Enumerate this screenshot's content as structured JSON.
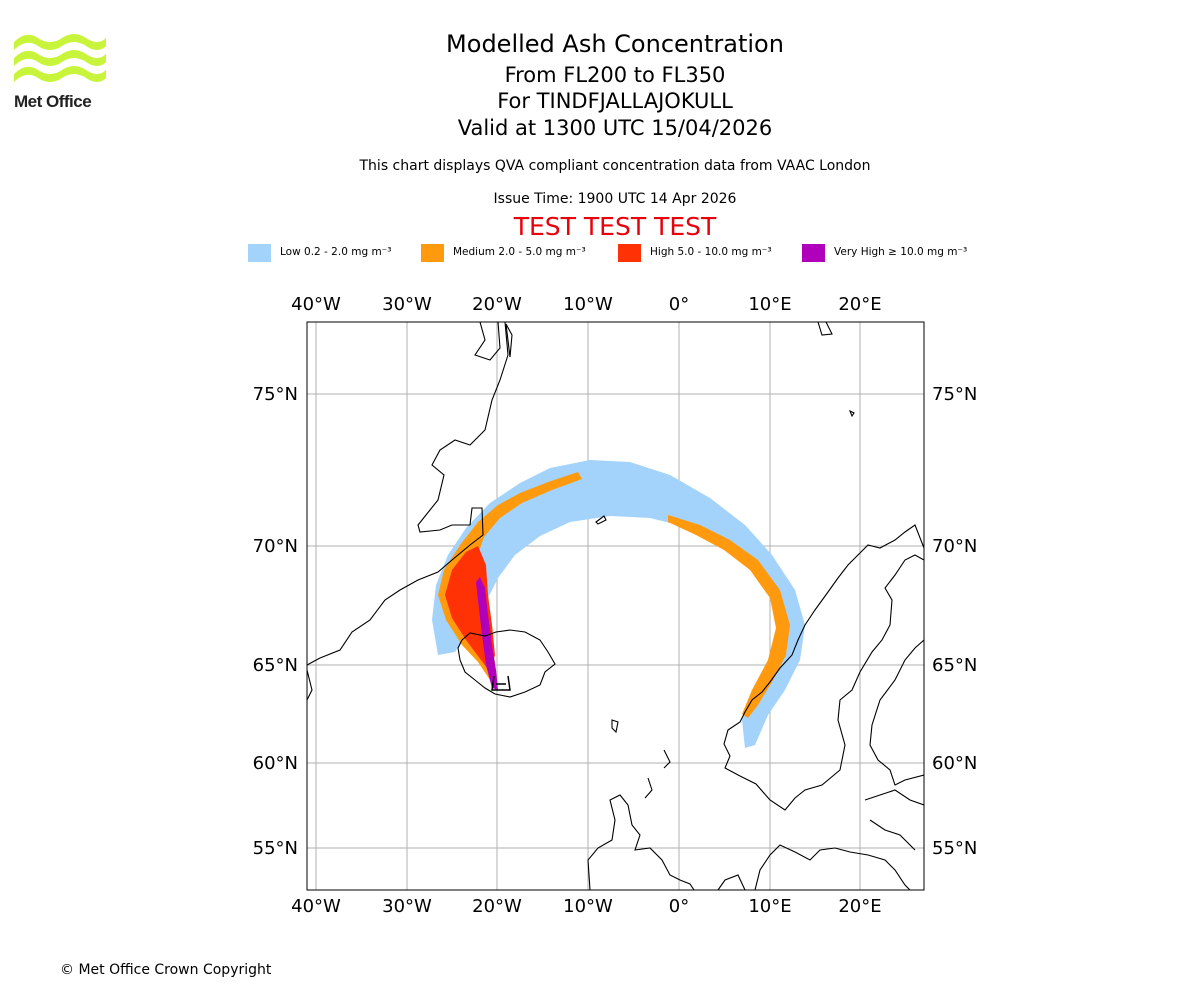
{
  "logo": {
    "text": "Met Office",
    "color": "#c8f53c"
  },
  "header": {
    "title": "Modelled Ash Concentration",
    "levels": "From FL200 to FL350",
    "volcano": "For TINDFJALLAJOKULL",
    "valid": "Valid at 1300 UTC 15/04/2026",
    "note": "This chart displays QVA compliant concentration data from VAAC London",
    "issue": "Issue Time: 1900 UTC 14 Apr 2026",
    "test_banner": "TEST TEST TEST",
    "test_color": "#e8000b"
  },
  "legend": [
    {
      "label": "Low 0.2 - 2.0 mg m⁻³",
      "color": "#a3d3fb"
    },
    {
      "label": "Medium 2.0 - 5.0 mg m⁻³",
      "color": "#ff9a0e"
    },
    {
      "label": "High 5.0 - 10.0 mg m⁻³",
      "color": "#ff3206"
    },
    {
      "label": "Very High ≥ 10.0 mg m⁻³",
      "color": "#b000bb"
    }
  ],
  "map": {
    "lon_labels": [
      "40°W",
      "30°W",
      "20°W",
      "10°W",
      "0°",
      "10°E",
      "20°E"
    ],
    "lat_labels": [
      "75°N",
      "70°N",
      "65°N",
      "60°N",
      "55°N"
    ]
  },
  "footer": {
    "copyright": "© Met Office Crown Copyright"
  }
}
